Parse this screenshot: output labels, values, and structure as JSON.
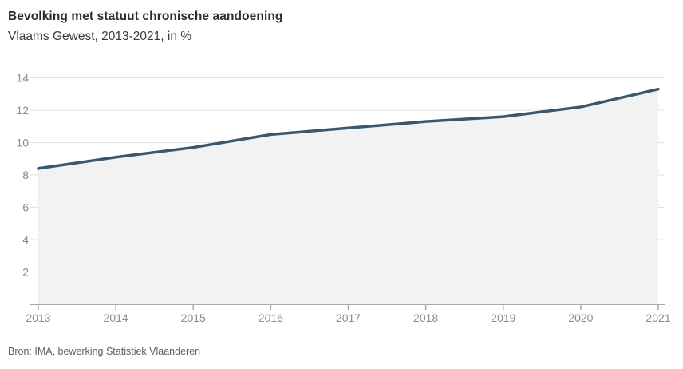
{
  "header": {
    "title": "Bevolking met statuut chronische aandoening",
    "subtitle": "Vlaams Gewest, 2013-2021, in %"
  },
  "footer": {
    "source": "Bron: IMA, bewerking Statistiek Vlaanderen"
  },
  "chart_data": {
    "type": "area",
    "title": "Bevolking met statuut chronische aandoening",
    "subtitle": "Vlaams Gewest, 2013-2021, in %",
    "x": [
      2013,
      2014,
      2015,
      2016,
      2017,
      2018,
      2019,
      2020,
      2021
    ],
    "series": [
      {
        "name": "Bevolking met statuut chronische aandoening (%)",
        "values": [
          8.4,
          9.1,
          9.7,
          10.5,
          10.9,
          11.3,
          11.6,
          12.2,
          13.3
        ]
      }
    ],
    "xlabel": "",
    "ylabel": "",
    "unit": "%",
    "ylim": [
      0,
      14
    ],
    "yticks": [
      2,
      4,
      6,
      8,
      10,
      12,
      14
    ],
    "grid": true,
    "legend": false,
    "colors": {
      "line": "#39586c",
      "area_fill": "#f2f2f2",
      "grid": "#e2e2e2",
      "axis": "#a9a9a9",
      "tick_label": "#8c8c8c",
      "start_guide": "#d8d8d8"
    }
  }
}
